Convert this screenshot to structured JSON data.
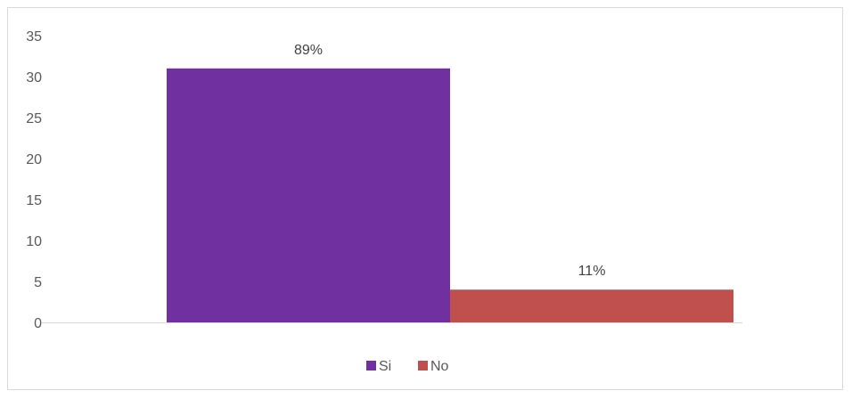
{
  "chart_data": {
    "type": "bar",
    "categories": [
      ""
    ],
    "series": [
      {
        "name": "Si",
        "values": [
          31
        ],
        "data_label": "89%",
        "color": "#7030A0"
      },
      {
        "name": "No",
        "values": [
          4
        ],
        "data_label": "11%",
        "color": "#C0504D"
      }
    ],
    "title": "",
    "xlabel": "",
    "ylabel": "",
    "ylim": [
      0,
      35
    ],
    "yticks": [
      "0",
      "5",
      "10",
      "15",
      "20",
      "25",
      "30",
      "35"
    ],
    "grid": false,
    "legend_position": "bottom"
  }
}
